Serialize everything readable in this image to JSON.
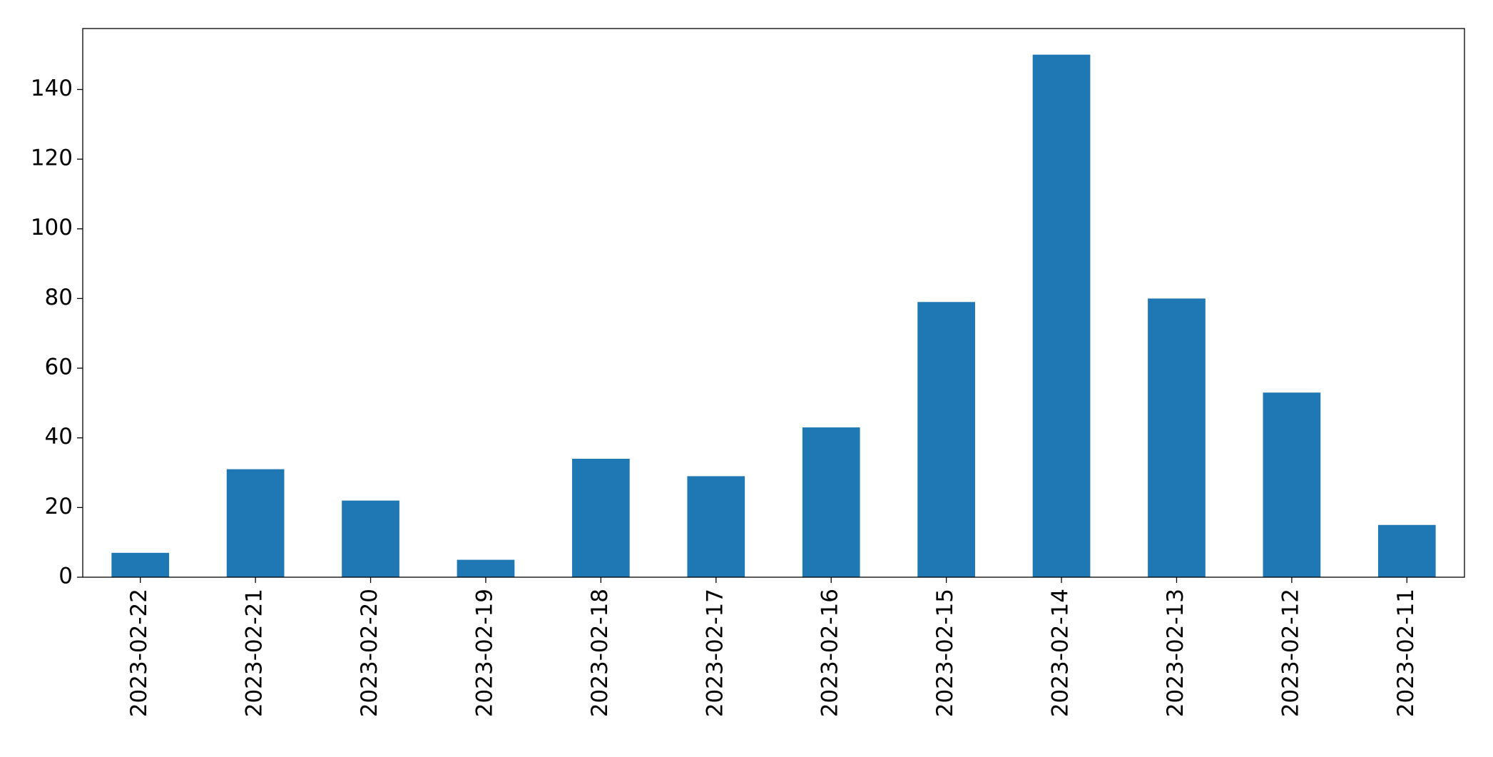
{
  "chart_data": {
    "type": "bar",
    "categories": [
      "2023-02-22",
      "2023-02-21",
      "2023-02-20",
      "2023-02-19",
      "2023-02-18",
      "2023-02-17",
      "2023-02-16",
      "2023-02-15",
      "2023-02-14",
      "2023-02-13",
      "2023-02-12",
      "2023-02-11"
    ],
    "values": [
      7,
      31,
      22,
      5,
      34,
      29,
      43,
      79,
      150,
      80,
      53,
      15
    ],
    "color": "#1f77b4",
    "ylim": [
      0,
      157.5
    ],
    "yticks": [
      0,
      20,
      40,
      60,
      80,
      100,
      120,
      140
    ],
    "grid": false
  }
}
